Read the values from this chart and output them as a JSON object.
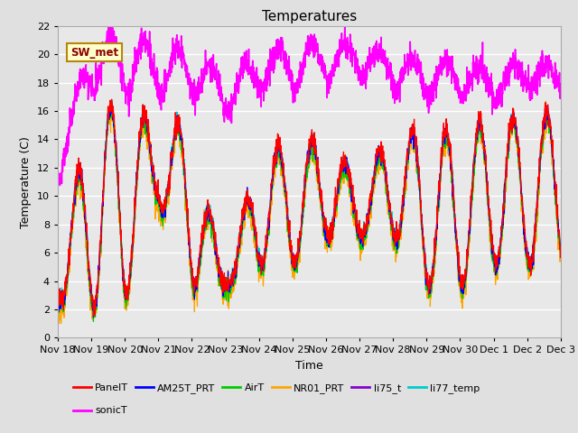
{
  "title": "Temperatures",
  "xlabel": "Time",
  "ylabel": "Temperature (C)",
  "ylim": [
    0,
    22
  ],
  "yticks": [
    0,
    2,
    4,
    6,
    8,
    10,
    12,
    14,
    16,
    18,
    20,
    22
  ],
  "xtick_labels": [
    "Nov 18",
    "Nov 19",
    "Nov 20",
    "Nov 21",
    "Nov 22",
    "Nov 23",
    "Nov 24",
    "Nov 25",
    "Nov 26",
    "Nov 27",
    "Nov 28",
    "Nov 29",
    "Nov 30",
    "Dec 1",
    "Dec 2",
    "Dec 3"
  ],
  "series_colors": {
    "PanelT": "#ff0000",
    "AM25T_PRT": "#0000ff",
    "AirT": "#00cc00",
    "NR01_PRT": "#ffa500",
    "li75_t": "#8800cc",
    "li77_temp": "#00cccc",
    "sonicT": "#ff00ff"
  },
  "annotation_text": "SW_met",
  "background_color": "#e0e0e0",
  "plot_bg_color": "#e8e8e8",
  "title_fontsize": 11,
  "label_fontsize": 9,
  "tick_fontsize": 8
}
